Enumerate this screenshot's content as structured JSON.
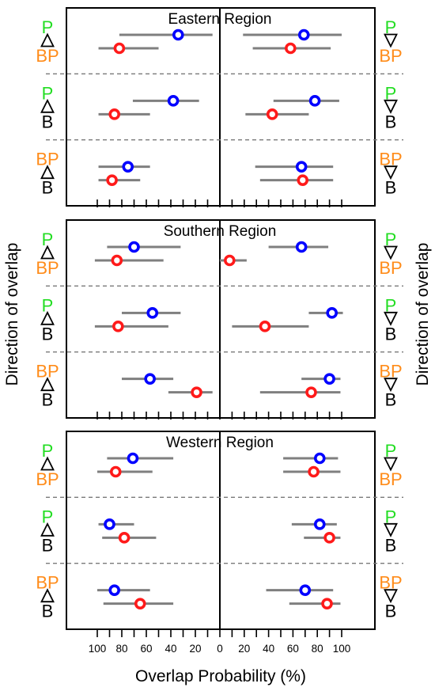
{
  "chart_data": {
    "type": "dot-interval (mirrored)",
    "xlabel": "Overlap Probability (%)",
    "ylabel_left": "Direction of overlap",
    "ylabel_right": "Direction of overlap",
    "x_ticks": [
      "100",
      "80",
      "60",
      "40",
      "20",
      "0",
      "20",
      "40",
      "60",
      "80",
      "100"
    ],
    "x_axis_note": "left half runs 100 to 0, right half runs 0 to 100",
    "colors": {
      "label_P": "#22dd22",
      "label_BP": "#ff8c1a",
      "label_B": "#000000",
      "marker_blue": "#0000ff",
      "marker_red": "#ff1a1a",
      "whisker": "#7f7f7f"
    },
    "panels": [
      {
        "title": "Eastern Region",
        "groups": [
          {
            "left_labels": [
              "P",
              "BP"
            ],
            "right_labels": [
              "P",
              "BP"
            ],
            "left": {
              "blue": {
                "value": 34,
                "low": 82,
                "high": 6
              },
              "red": {
                "value": 82,
                "low": 99,
                "high": 50
              }
            },
            "right": {
              "blue": {
                "value": 69,
                "low": 19,
                "high": 100
              },
              "red": {
                "value": 58,
                "low": 27,
                "high": 91
              }
            }
          },
          {
            "left_labels": [
              "P",
              "B"
            ],
            "right_labels": [
              "P",
              "B"
            ],
            "left": {
              "blue": {
                "value": 38,
                "low": 71,
                "high": 17
              },
              "red": {
                "value": 86,
                "low": 99,
                "high": 57
              }
            },
            "right": {
              "blue": {
                "value": 78,
                "low": 44,
                "high": 98
              },
              "red": {
                "value": 43,
                "low": 21,
                "high": 73
              }
            }
          },
          {
            "left_labels": [
              "BP",
              "B"
            ],
            "right_labels": [
              "BP",
              "B"
            ],
            "left": {
              "blue": {
                "value": 75,
                "low": 99,
                "high": 57
              },
              "red": {
                "value": 88,
                "low": 99,
                "high": 65
              }
            },
            "right": {
              "blue": {
                "value": 67,
                "low": 29,
                "high": 93
              },
              "red": {
                "value": 68,
                "low": 33,
                "high": 93
              }
            }
          }
        ]
      },
      {
        "title": "Southern Region",
        "groups": [
          {
            "left_labels": [
              "P",
              "BP"
            ],
            "right_labels": [
              "P",
              "BP"
            ],
            "left": {
              "blue": {
                "value": 70,
                "low": 92,
                "high": 32
              },
              "red": {
                "value": 84,
                "low": 102,
                "high": 46
              }
            },
            "right": {
              "blue": {
                "value": 67,
                "low": 40,
                "high": 89
              },
              "red": {
                "value": 8,
                "low": 0,
                "high": 22
              }
            }
          },
          {
            "left_labels": [
              "P",
              "B"
            ],
            "right_labels": [
              "P",
              "B"
            ],
            "left": {
              "blue": {
                "value": 55,
                "low": 80,
                "high": 32
              },
              "red": {
                "value": 83,
                "low": 102,
                "high": 42
              }
            },
            "right": {
              "blue": {
                "value": 92,
                "low": 73,
                "high": 101
              },
              "red": {
                "value": 37,
                "low": 10,
                "high": 73
              }
            }
          },
          {
            "left_labels": [
              "BP",
              "B"
            ],
            "right_labels": [
              "BP",
              "B"
            ],
            "left": {
              "blue": {
                "value": 57,
                "low": 80,
                "high": 38
              },
              "red": {
                "value": 19,
                "low": 42,
                "high": 6
              }
            },
            "right": {
              "blue": {
                "value": 90,
                "low": 67,
                "high": 99
              },
              "red": {
                "value": 75,
                "low": 33,
                "high": 99
              }
            }
          }
        ]
      },
      {
        "title": "Western Region",
        "groups": [
          {
            "left_labels": [
              "P",
              "BP"
            ],
            "right_labels": [
              "P",
              "BP"
            ],
            "left": {
              "blue": {
                "value": 71,
                "low": 92,
                "high": 38
              },
              "red": {
                "value": 85,
                "low": 100,
                "high": 55
              }
            },
            "right": {
              "blue": {
                "value": 82,
                "low": 52,
                "high": 97
              },
              "red": {
                "value": 77,
                "low": 52,
                "high": 99
              }
            }
          },
          {
            "left_labels": [
              "P",
              "B"
            ],
            "right_labels": [
              "P",
              "B"
            ],
            "left": {
              "blue": {
                "value": 90,
                "low": 99,
                "high": 70
              },
              "red": {
                "value": 78,
                "low": 96,
                "high": 52
              }
            },
            "right": {
              "blue": {
                "value": 82,
                "low": 59,
                "high": 96
              },
              "red": {
                "value": 90,
                "low": 69,
                "high": 99
              }
            }
          },
          {
            "left_labels": [
              "BP",
              "B"
            ],
            "right_labels": [
              "BP",
              "B"
            ],
            "left": {
              "blue": {
                "value": 86,
                "low": 100,
                "high": 57
              },
              "red": {
                "value": 65,
                "low": 95,
                "high": 38
              }
            },
            "right": {
              "blue": {
                "value": 70,
                "low": 38,
                "high": 93
              },
              "red": {
                "value": 88,
                "low": 57,
                "high": 99
              }
            }
          }
        ]
      }
    ]
  }
}
